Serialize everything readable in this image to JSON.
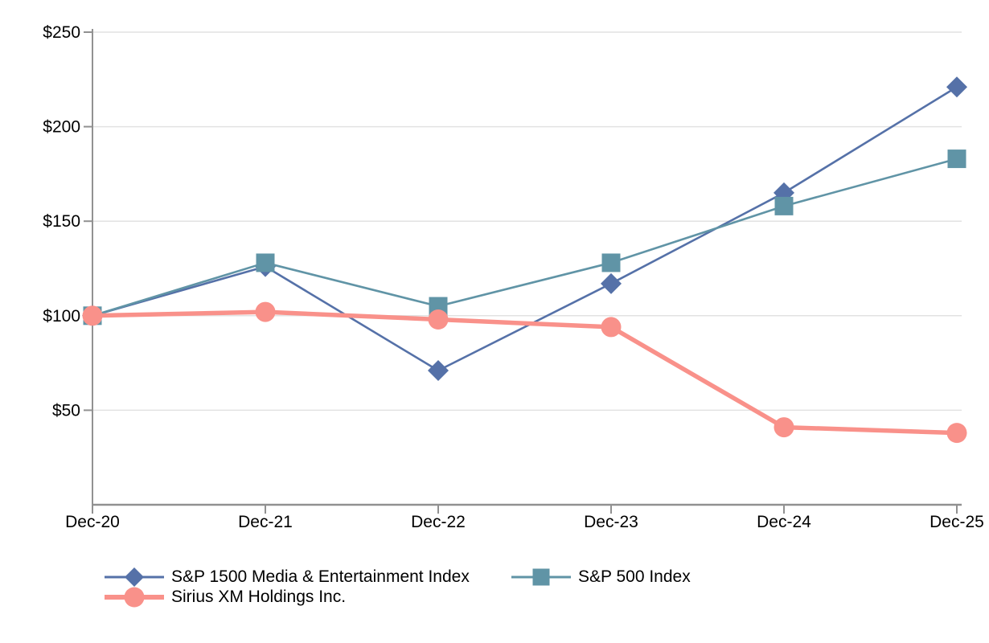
{
  "chart_data": {
    "type": "line",
    "title": "",
    "x_categories": [
      "Dec-20",
      "Dec-21",
      "Dec-22",
      "Dec-23",
      "Dec-24",
      "Dec-25"
    ],
    "y_ticks": [
      {
        "label": "$250",
        "value": 250
      },
      {
        "label": "$200",
        "value": 200
      },
      {
        "label": "$150",
        "value": 150
      },
      {
        "label": "$100",
        "value": 100
      },
      {
        "label": "$50",
        "value": 50
      }
    ],
    "ylim": [
      0,
      250
    ],
    "grid": true,
    "legend_position": "bottom",
    "axis_color": "#919191",
    "gridline_color": "#E2E2E2",
    "text_color": "#000000",
    "series": [
      {
        "name": "S&P 1500 Media & Entertainment Index",
        "marker": "diamond",
        "color": "#5571A8",
        "line_width": 2.6,
        "values": [
          100,
          126,
          71,
          117,
          165,
          221
        ]
      },
      {
        "name": "S&P 500 Index",
        "marker": "square",
        "color": "#6094A6",
        "line_width": 2.6,
        "values": [
          100,
          128,
          105,
          128,
          158,
          183
        ]
      },
      {
        "name": "Sirius XM Holdings Inc.",
        "marker": "circle",
        "color": "#F9918A",
        "line_width": 5.5,
        "values": [
          100,
          102,
          98,
          94,
          41,
          38
        ]
      }
    ]
  }
}
